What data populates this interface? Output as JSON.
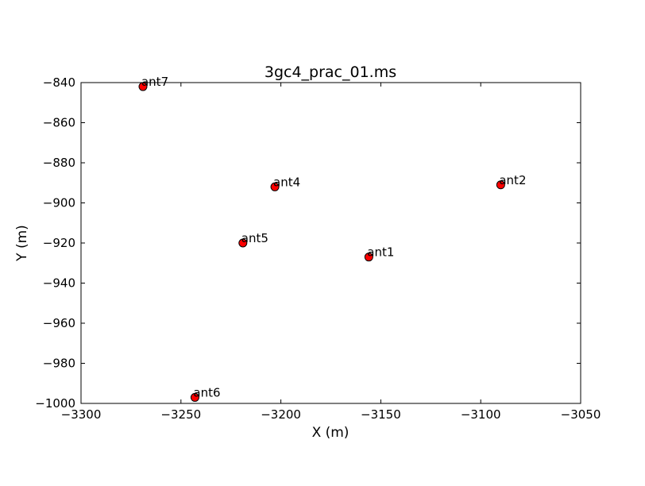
{
  "chart_data": {
    "type": "scatter",
    "title": "3gc4_prac_01.ms",
    "xlabel": "X (m)",
    "ylabel": "Y (m)",
    "xlim": [
      -3300,
      -3050
    ],
    "ylim": [
      -1000,
      -840
    ],
    "x_ticks": [
      -3300,
      -3250,
      -3200,
      -3150,
      -3100,
      -3050
    ],
    "y_ticks": [
      -840,
      -860,
      -880,
      -900,
      -920,
      -940,
      -960,
      -980,
      -1000
    ],
    "x_tick_labels": [
      "−3300",
      "−3250",
      "−3200",
      "−3150",
      "−3100",
      "−3050"
    ],
    "y_tick_labels": [
      "−840",
      "−860",
      "−880",
      "−900",
      "−920",
      "−940",
      "−960",
      "−980",
      "−1000"
    ],
    "grid": false,
    "marker_color": "#ff0000",
    "marker_edge_color": "#000000",
    "points": [
      {
        "label": "ant7",
        "x": -3269,
        "y": -842
      },
      {
        "label": "ant4",
        "x": -3203,
        "y": -892
      },
      {
        "label": "ant2",
        "x": -3090,
        "y": -891
      },
      {
        "label": "ant5",
        "x": -3219,
        "y": -920
      },
      {
        "label": "ant1",
        "x": -3156,
        "y": -927
      },
      {
        "label": "ant6",
        "x": -3243,
        "y": -997
      }
    ]
  }
}
